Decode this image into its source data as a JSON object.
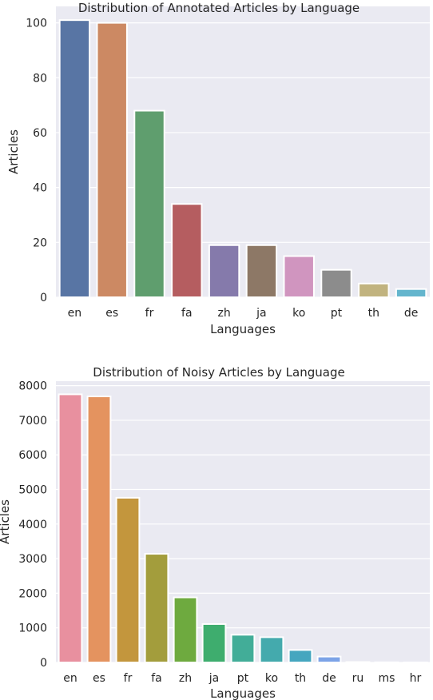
{
  "chart_data": [
    {
      "type": "bar",
      "title": "Distribution of Annotated Articles by Language",
      "xlabel": "Languages",
      "ylabel": "Articles",
      "categories": [
        "en",
        "es",
        "fr",
        "fa",
        "zh",
        "ja",
        "ko",
        "pt",
        "th",
        "de"
      ],
      "values": [
        101,
        100,
        68,
        34,
        19,
        19,
        15,
        10,
        5,
        3
      ],
      "ylim": [
        0,
        106
      ],
      "yticks": [
        0,
        20,
        40,
        60,
        80,
        100
      ],
      "grid": true,
      "colors": [
        "#5875a4",
        "#cc8963",
        "#5f9e6e",
        "#b55d60",
        "#857aab",
        "#8d7866",
        "#d095bf",
        "#8c8c8c",
        "#c1b37f",
        "#64b5cd"
      ]
    },
    {
      "type": "bar",
      "title": "Distribution of Noisy Articles by Language",
      "xlabel": "Languages",
      "ylabel": "Articles",
      "categories": [
        "en",
        "es",
        "fr",
        "fa",
        "zh",
        "ja",
        "pt",
        "ko",
        "th",
        "de",
        "ru",
        "ms",
        "hr"
      ],
      "values": [
        7750,
        7690,
        4760,
        3140,
        1880,
        1110,
        800,
        730,
        360,
        170,
        10,
        5,
        3
      ],
      "ylim": [
        0,
        8130
      ],
      "yticks": [
        0,
        1000,
        2000,
        3000,
        4000,
        5000,
        6000,
        7000,
        8000
      ],
      "grid": true,
      "colors": [
        "#e8909f",
        "#e4935f",
        "#c3963d",
        "#a39d3c",
        "#6eaa3f",
        "#3ead6e",
        "#42ad98",
        "#44aaad",
        "#45a6bf",
        "#7ca3e7",
        "#ba98e6",
        "#e088df",
        "#e48cbc"
      ]
    }
  ]
}
